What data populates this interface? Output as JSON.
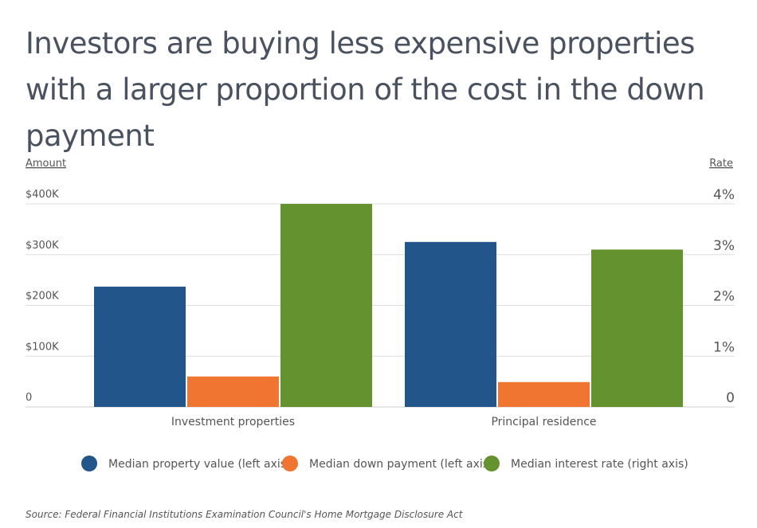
{
  "title": "Investors are buying less expensive properties with a larger proportion of the cost in the down payment",
  "source": "Source:  Federal Financial Institutions Examination Council's Home Mortgage Disclosure Act",
  "chart_data": {
    "type": "bar",
    "title": "Investors are buying less expensive properties with a larger proportion of the cost in the down payment",
    "categories": [
      "Investment properties",
      "Principal residence"
    ],
    "left_axis": {
      "label": "Amount",
      "ylim": [
        0,
        400000
      ],
      "ticks": [
        0,
        100000,
        200000,
        300000,
        400000
      ],
      "tick_labels": [
        "0",
        "$100K",
        "$200K",
        "$300K",
        "$400K"
      ]
    },
    "right_axis": {
      "label": "Rate",
      "ylim": [
        0,
        4
      ],
      "ticks": [
        0,
        1,
        2,
        3,
        4
      ],
      "tick_labels": [
        "0",
        "1%",
        "2%",
        "3%",
        "4%"
      ]
    },
    "grid": true,
    "legend_position": "bottom",
    "series": [
      {
        "name": "Median property value (left axis)",
        "axis": "left",
        "color": "#22558a",
        "values": [
          237000,
          325000
        ]
      },
      {
        "name": "Median down payment (left axis)",
        "axis": "left",
        "color": "#f07530",
        "values": [
          60000,
          49000
        ]
      },
      {
        "name": "Median interest rate (right axis)",
        "axis": "right",
        "color": "#63922e",
        "values": [
          4.0,
          3.1
        ]
      }
    ]
  }
}
